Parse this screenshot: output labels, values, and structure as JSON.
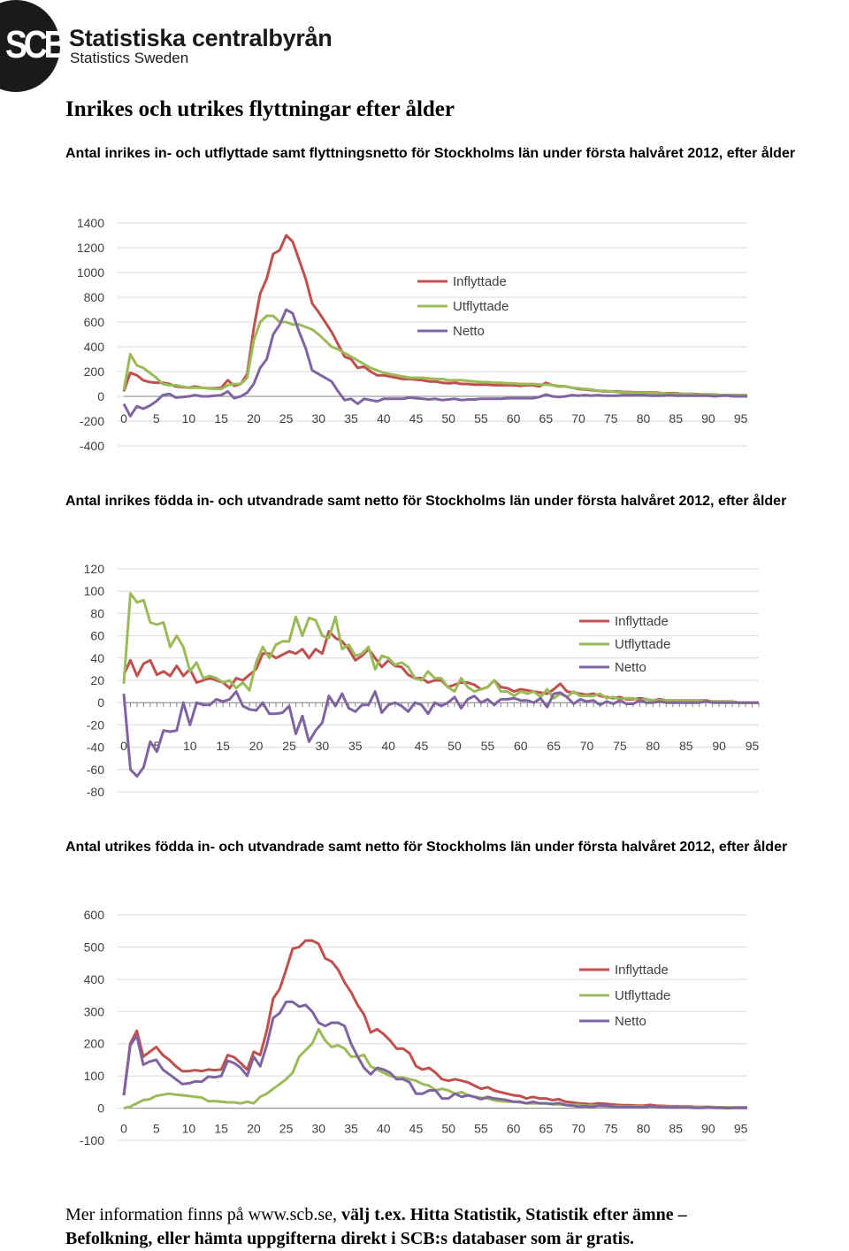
{
  "logo": {
    "mark": "SCB",
    "name": "Statistiska centralbyrån",
    "subtitle": "Statistics Sweden"
  },
  "page_title": "Inrikes och utrikes flyttningar efter ålder",
  "colors": {
    "inflyttade": "#c0504d",
    "utflyttade": "#9bbb59",
    "netto": "#8064a2",
    "grid": "#d9d9d9",
    "axis": "#868686"
  },
  "charts": [
    {
      "caption": "Antal inrikes in- och utflyttade samt flyttningsnetto för Stockholms län under första halvåret 2012, efter ålder"
    },
    {
      "caption": "Antal inrikes födda in- och utvandrade samt netto för Stockholms län under första halvåret 2012, efter ålder"
    },
    {
      "caption": "Antal utrikes födda in- och utvandrade samt netto för Stockholms län under första halvåret 2012, efter ålder"
    }
  ],
  "chart_data": [
    {
      "type": "line",
      "title": "Antal inrikes in- och utflyttade samt flyttningsnetto för Stockholms län under första halvåret 2012, efter ålder",
      "xlabel": "",
      "ylabel": "",
      "xlim": [
        0,
        96
      ],
      "ylim": [
        -400,
        1400
      ],
      "ystep": 200,
      "xticks": [
        0,
        5,
        10,
        15,
        20,
        25,
        30,
        35,
        40,
        45,
        50,
        55,
        60,
        65,
        70,
        75,
        80,
        85,
        90,
        95
      ],
      "legend": "right",
      "series": [
        {
          "name": "Inflyttade",
          "key": "inflyttade",
          "values": [
            40,
            190,
            170,
            130,
            115,
            110,
            110,
            100,
            80,
            75,
            70,
            80,
            70,
            65,
            65,
            70,
            130,
            85,
            100,
            180,
            550,
            830,
            950,
            1150,
            1180,
            1300,
            1250,
            1100,
            950,
            750,
            680,
            600,
            520,
            420,
            320,
            300,
            230,
            240,
            200,
            170,
            170,
            160,
            150,
            140,
            140,
            135,
            130,
            120,
            120,
            110,
            105,
            110,
            100,
            100,
            95,
            95,
            95,
            90,
            90,
            90,
            90,
            85,
            90,
            90,
            80,
            110,
            90,
            80,
            80,
            70,
            60,
            55,
            50,
            45,
            40,
            40,
            40,
            35,
            35,
            30,
            30,
            30,
            30,
            25,
            25,
            25,
            20,
            20,
            20,
            15,
            15,
            15,
            10,
            10,
            10,
            10,
            10
          ]
        },
        {
          "name": "Utflyttade",
          "key": "utflyttade",
          "values": [
            50,
            340,
            250,
            230,
            190,
            150,
            100,
            90,
            90,
            80,
            70,
            70,
            70,
            65,
            60,
            60,
            90,
            100,
            100,
            150,
            450,
            600,
            650,
            650,
            600,
            600,
            580,
            580,
            560,
            540,
            500,
            450,
            400,
            380,
            350,
            320,
            290,
            260,
            230,
            210,
            190,
            180,
            170,
            160,
            150,
            150,
            150,
            145,
            140,
            140,
            130,
            130,
            130,
            125,
            120,
            115,
            115,
            110,
            110,
            105,
            105,
            100,
            100,
            100,
            95,
            95,
            90,
            85,
            80,
            70,
            65,
            60,
            55,
            45,
            45,
            40,
            35,
            30,
            30,
            25,
            25,
            25,
            25,
            25,
            20,
            20,
            20,
            20,
            15,
            15,
            15,
            15,
            10,
            10,
            10,
            10,
            10
          ]
        },
        {
          "name": "Netto",
          "key": "netto",
          "values": [
            -60,
            -160,
            -80,
            -100,
            -75,
            -40,
            10,
            20,
            -10,
            -5,
            0,
            10,
            0,
            0,
            5,
            10,
            40,
            -15,
            0,
            30,
            100,
            230,
            300,
            500,
            580,
            700,
            670,
            520,
            390,
            210,
            180,
            150,
            120,
            40,
            -30,
            -20,
            -60,
            -20,
            -30,
            -40,
            -20,
            -20,
            -20,
            -20,
            -10,
            -15,
            -20,
            -25,
            -20,
            -30,
            -25,
            -20,
            -30,
            -25,
            -25,
            -20,
            -20,
            -20,
            -20,
            -15,
            -15,
            -15,
            -15,
            -15,
            -5,
            15,
            0,
            -5,
            0,
            10,
            5,
            10,
            5,
            10,
            5,
            5,
            5,
            10,
            10,
            10,
            10,
            5,
            5,
            5,
            10,
            5,
            5,
            5,
            5,
            5,
            5,
            0,
            5,
            5,
            0,
            0,
            0
          ]
        }
      ]
    },
    {
      "type": "line",
      "title": "Antal inrikes födda in- och utvandrade samt netto för Stockholms län under första halvåret 2012, efter ålder",
      "xlabel": "",
      "ylabel": "",
      "xlim": [
        0,
        96
      ],
      "ylim": [
        -80,
        120
      ],
      "ystep": 20,
      "xticks": [
        0,
        5,
        10,
        15,
        20,
        25,
        30,
        35,
        40,
        45,
        50,
        55,
        60,
        65,
        70,
        75,
        80,
        85,
        90,
        95
      ],
      "legend": "right",
      "series": [
        {
          "name": "Inflyttade",
          "key": "inflyttade",
          "values": [
            25,
            38,
            24,
            35,
            38,
            25,
            28,
            24,
            33,
            24,
            30,
            18,
            20,
            22,
            20,
            18,
            13,
            22,
            20,
            25,
            30,
            44,
            44,
            40,
            43,
            46,
            44,
            48,
            40,
            48,
            44,
            64,
            58,
            55,
            48,
            38,
            42,
            48,
            40,
            32,
            38,
            33,
            32,
            25,
            22,
            22,
            18,
            20,
            20,
            14,
            16,
            18,
            18,
            16,
            12,
            14,
            20,
            14,
            13,
            10,
            12,
            11,
            10,
            9,
            8,
            12,
            17,
            10,
            9,
            8,
            7,
            8,
            6,
            5,
            4,
            5,
            3,
            3,
            4,
            3,
            2,
            3,
            2,
            2,
            2,
            2,
            2,
            2,
            2,
            1,
            1,
            1,
            1,
            0,
            0,
            0,
            0
          ]
        },
        {
          "name": "Utflyttade",
          "key": "utflyttade",
          "values": [
            17,
            98,
            90,
            92,
            72,
            70,
            72,
            50,
            60,
            50,
            28,
            36,
            22,
            24,
            22,
            18,
            20,
            13,
            18,
            11,
            36,
            50,
            40,
            52,
            55,
            55,
            77,
            60,
            76,
            74,
            60,
            58,
            77,
            48,
            52,
            42,
            44,
            50,
            30,
            42,
            40,
            34,
            36,
            32,
            22,
            20,
            28,
            22,
            22,
            14,
            10,
            22,
            14,
            10,
            12,
            14,
            20,
            10,
            10,
            6,
            10,
            8,
            10,
            5,
            12,
            4,
            8,
            5,
            10,
            6,
            6,
            6,
            8,
            4,
            5,
            3,
            4,
            4,
            2,
            3,
            2,
            2,
            2,
            2,
            2,
            2,
            2,
            2,
            1,
            1,
            1,
            1,
            1,
            0,
            0,
            0,
            0
          ]
        },
        {
          "name": "Netto",
          "key": "netto",
          "values": [
            8,
            -60,
            -66,
            -58,
            -35,
            -44,
            -25,
            -26,
            -25,
            0,
            -20,
            0,
            -2,
            -2,
            3,
            1,
            3,
            10,
            -3,
            -6,
            -7,
            0,
            -10,
            -10,
            -9,
            -3,
            -28,
            -12,
            -35,
            -25,
            -18,
            6,
            -3,
            8,
            -5,
            -8,
            -2,
            -2,
            10,
            -9,
            -2,
            0,
            -3,
            -8,
            0,
            -2,
            -10,
            0,
            -3,
            0,
            5,
            -5,
            3,
            6,
            0,
            3,
            -2,
            3,
            3,
            4,
            2,
            2,
            0,
            4,
            -4,
            8,
            9,
            5,
            -1,
            3,
            1,
            2,
            -2,
            1,
            -1,
            2,
            -1,
            -1,
            2,
            0,
            0,
            1,
            0,
            0,
            0,
            0,
            0,
            0,
            1,
            0,
            0,
            0,
            0,
            0,
            0,
            0,
            0
          ]
        }
      ]
    },
    {
      "type": "line",
      "title": "Antal utrikes födda in- och utvandrade samt netto för Stockholms län under första halvåret 2012, efter ålder",
      "xlabel": "",
      "ylabel": "",
      "xlim": [
        0,
        96
      ],
      "ylim": [
        -100,
        600
      ],
      "ystep": 100,
      "xticks": [
        0,
        5,
        10,
        15,
        20,
        25,
        30,
        35,
        40,
        45,
        50,
        55,
        60,
        65,
        70,
        75,
        80,
        85,
        90,
        95
      ],
      "legend": "right",
      "series": [
        {
          "name": "Inflyttade",
          "key": "inflyttade",
          "values": [
            40,
            200,
            240,
            160,
            175,
            190,
            165,
            150,
            130,
            115,
            115,
            118,
            115,
            120,
            118,
            120,
            165,
            158,
            140,
            120,
            175,
            165,
            240,
            340,
            370,
            430,
            495,
            500,
            520,
            520,
            510,
            465,
            455,
            430,
            390,
            360,
            320,
            290,
            235,
            245,
            230,
            210,
            185,
            185,
            170,
            130,
            120,
            125,
            110,
            90,
            85,
            90,
            85,
            80,
            70,
            60,
            65,
            55,
            50,
            45,
            40,
            38,
            30,
            35,
            30,
            30,
            25,
            28,
            20,
            18,
            15,
            14,
            12,
            15,
            14,
            12,
            10,
            9,
            9,
            8,
            8,
            10,
            8,
            7,
            6,
            6,
            5,
            5,
            4,
            4,
            4,
            3,
            3,
            2,
            2,
            2,
            2
          ]
        },
        {
          "name": "Utflyttade",
          "key": "utflyttade",
          "values": [
            0,
            5,
            15,
            25,
            28,
            38,
            42,
            45,
            42,
            40,
            38,
            35,
            33,
            22,
            22,
            20,
            18,
            18,
            15,
            20,
            15,
            35,
            45,
            60,
            75,
            90,
            110,
            160,
            180,
            200,
            245,
            210,
            190,
            195,
            185,
            160,
            160,
            165,
            130,
            120,
            110,
            100,
            95,
            95,
            90,
            85,
            75,
            70,
            55,
            60,
            55,
            45,
            50,
            40,
            35,
            32,
            30,
            25,
            22,
            20,
            20,
            18,
            15,
            15,
            15,
            15,
            12,
            12,
            10,
            10,
            10,
            8,
            8,
            8,
            6,
            6,
            6,
            5,
            5,
            5,
            5,
            4,
            4,
            4,
            4,
            4,
            3,
            3,
            3,
            3,
            2,
            2,
            2,
            2,
            1,
            1,
            1
          ]
        },
        {
          "name": "Netto",
          "key": "netto",
          "values": [
            40,
            195,
            225,
            135,
            145,
            150,
            120,
            105,
            90,
            75,
            77,
            83,
            82,
            98,
            96,
            100,
            147,
            140,
            125,
            100,
            160,
            130,
            195,
            280,
            295,
            330,
            330,
            315,
            320,
            300,
            265,
            255,
            265,
            265,
            255,
            200,
            160,
            125,
            105,
            125,
            120,
            110,
            90,
            90,
            80,
            45,
            45,
            55,
            55,
            30,
            30,
            45,
            35,
            40,
            35,
            28,
            35,
            30,
            28,
            25,
            20,
            20,
            15,
            20,
            15,
            15,
            13,
            16,
            10,
            8,
            5,
            6,
            4,
            7,
            8,
            6,
            4,
            4,
            4,
            3,
            3,
            6,
            4,
            3,
            2,
            2,
            2,
            2,
            1,
            1,
            2,
            1,
            1,
            0,
            1,
            1,
            1
          ]
        }
      ]
    }
  ],
  "footer": {
    "line1_prefix": "Mer information finns på www.scb.se, ",
    "line1_bold": "välj t.ex. Hitta Statistik, Statistik efter ämne –",
    "line2_bold": "Befolkning, eller hämta uppgifterna direkt i SCB:s databaser som är gratis."
  }
}
